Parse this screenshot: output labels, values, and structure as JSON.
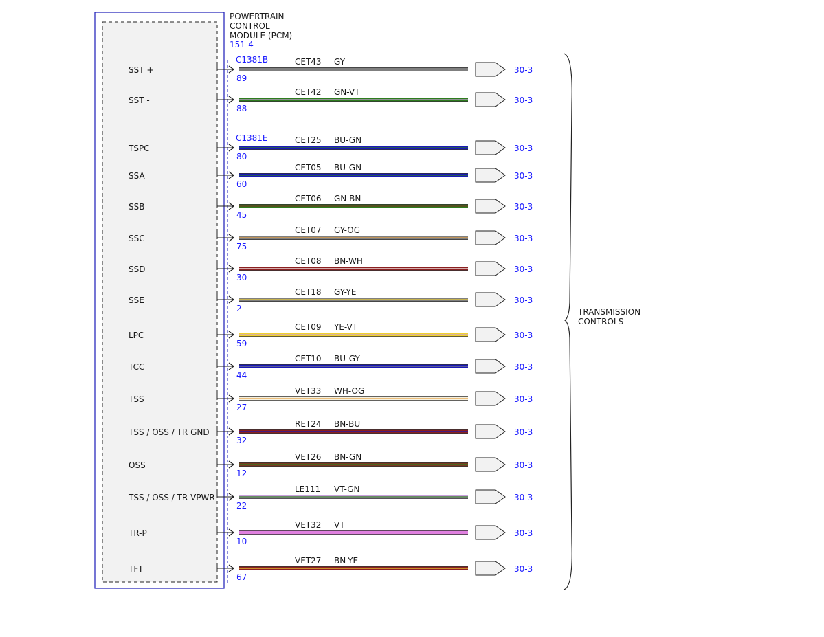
{
  "module": {
    "name_lines": [
      "POWERTRAIN",
      "CONTROL",
      "MODULE (PCM)"
    ],
    "ref": "151-4"
  },
  "connectors": [
    {
      "name": "C1381B",
      "first_row": 0
    },
    {
      "name": "C1381E",
      "first_row": 2
    }
  ],
  "rows": [
    {
      "signal": "SST +",
      "pin": "89",
      "circuit": "CET43",
      "color_code": "GY",
      "base": "#7f7f7f",
      "stripe": null,
      "dest": "30-3"
    },
    {
      "signal": "SST -",
      "pin": "88",
      "circuit": "CET42",
      "color_code": "GN-VT",
      "base": "#2e7d1e",
      "stripe": "#c9a0dc",
      "dest": "30-3"
    },
    {
      "signal": "TSPC",
      "pin": "80",
      "circuit": "CET25",
      "color_code": "BU-GN",
      "base": "#1a1ab8",
      "stripe": "#2e7d1e",
      "dest": "30-3"
    },
    {
      "signal": "SSA",
      "pin": "60",
      "circuit": "CET05",
      "color_code": "BU-GN",
      "base": "#1a1ab8",
      "stripe": "#2e7d1e",
      "dest": "30-3"
    },
    {
      "signal": "SSB",
      "pin": "45",
      "circuit": "CET06",
      "color_code": "GN-BN",
      "base": "#2e7d1e",
      "stripe": "#6b3a1e",
      "dest": "30-3"
    },
    {
      "signal": "SSC",
      "pin": "75",
      "circuit": "CET07",
      "color_code": "GY-OG",
      "base": "#808080",
      "stripe": "#e8a040",
      "dest": "30-3"
    },
    {
      "signal": "SSD",
      "pin": "30",
      "circuit": "CET08",
      "color_code": "BN-WH",
      "base": "#8b2020",
      "stripe": "#ffffff",
      "dest": "30-3"
    },
    {
      "signal": "SSE",
      "pin": "2",
      "circuit": "CET18",
      "color_code": "GY-YE",
      "base": "#808080",
      "stripe": "#f0d030",
      "dest": "30-3"
    },
    {
      "signal": "LPC",
      "pin": "59",
      "circuit": "CET09",
      "color_code": "YE-VT",
      "base": "#f0d030",
      "stripe": "#c9a0dc",
      "dest": "30-3"
    },
    {
      "signal": "TCC",
      "pin": "44",
      "circuit": "CET10",
      "color_code": "BU-GY",
      "base": "#1a1ab8",
      "stripe": "#808080",
      "dest": "30-3"
    },
    {
      "signal": "TSS",
      "pin": "27",
      "circuit": "VET33",
      "color_code": "WH-OG",
      "base": "#f4f0e0",
      "stripe": "#e8a040",
      "dest": "30-3"
    },
    {
      "signal": "TSS / OSS / TR GND",
      "pin": "32",
      "circuit": "RET24",
      "color_code": "BN-BU",
      "base": "#8b2020",
      "stripe": "#1a1ab8",
      "dest": "30-3"
    },
    {
      "signal": "OSS",
      "pin": "12",
      "circuit": "VET26",
      "color_code": "BN-GN",
      "base": "#7a3a20",
      "stripe": "#2e7d1e",
      "dest": "30-3"
    },
    {
      "signal": "TSS / OSS / TR VPWR",
      "pin": "22",
      "circuit": "LE111",
      "color_code": "VT-GN",
      "base": "#c9a0dc",
      "stripe": "#2e7d1e",
      "dest": "30-3"
    },
    {
      "signal": "TR-P",
      "pin": "10",
      "circuit": "VET32",
      "color_code": "VT",
      "base": "#e080e0",
      "stripe": null,
      "dest": "30-3"
    },
    {
      "signal": "TFT",
      "pin": "67",
      "circuit": "VET27",
      "color_code": "BN-YE",
      "base": "#8b2020",
      "stripe": "#f0d030",
      "dest": "30-3"
    }
  ],
  "group_label_lines": [
    "TRANSMISSION",
    "CONTROLS"
  ],
  "colors": {
    "link_blue": "#1a1aff",
    "box_fill": "#f2f2f2",
    "frame": "#1a1ab8"
  }
}
